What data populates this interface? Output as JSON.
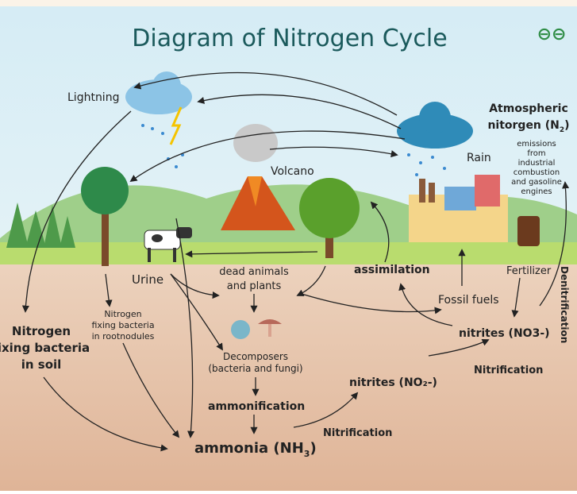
{
  "title": "Diagram of Nitrogen Cycle",
  "labels": {
    "lightning": "Lightning",
    "volcano": "Volcano",
    "rain": "Rain",
    "atmospheric_nitrogen": {
      "line1": "Atmospheric",
      "line2": "nitorgen (N",
      "subscript": "2",
      "suffix": ")"
    },
    "emissions": [
      "emissions",
      "from",
      "industrial",
      "combustion",
      "and gasoline",
      "engines"
    ],
    "fertilizer": "Fertilizer",
    "denitrification": "Denitrification",
    "assimilation": "assimilation",
    "fossil_fuels": "Fossil fuels",
    "nitrites_no3": "nitrites (NO3-)",
    "nitrification_upper": "Nitrification",
    "nitrites_no2": "nitrites (NO₂-)",
    "nitrification_lower": "Nitrification",
    "ammonia": {
      "text": "ammonia (NH",
      "subscript": "3",
      "suffix": ")"
    },
    "ammonification": "ammonification",
    "decomposers": [
      "Decomposers",
      "(bacteria and fungi)"
    ],
    "dead_matter": [
      "dead animals",
      "and plants"
    ],
    "urine": "Urine",
    "root_bacteria": [
      "Nitrogen",
      "fixing bacteria",
      "in rootnodules"
    ],
    "soil_bacteria": [
      "Nitrogen",
      "fixing bacteria",
      "in soil"
    ]
  }
}
